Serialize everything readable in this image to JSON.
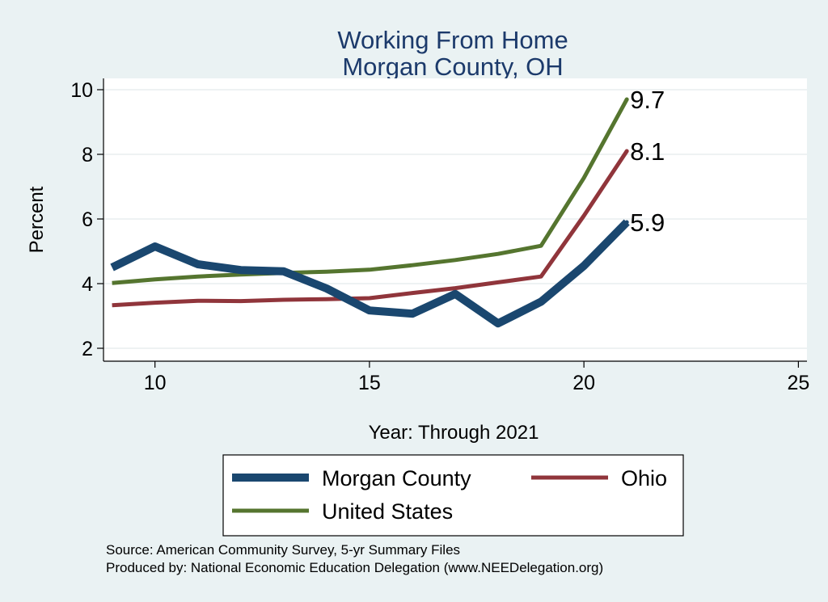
{
  "chart_data": {
    "type": "line",
    "title": [
      "Working From Home",
      "Morgan County, OH"
    ],
    "xlabel": "Year: Through 2021",
    "ylabel": "Percent",
    "xlim": [
      8.8,
      25.2
    ],
    "ylim": [
      1.6,
      10.35
    ],
    "xticks": [
      10,
      15,
      20,
      25
    ],
    "yticks": [
      2,
      4,
      6,
      8,
      10
    ],
    "grid": true,
    "legend_position": "bottom",
    "x": [
      9,
      10,
      11,
      12,
      13,
      14,
      15,
      16,
      17,
      18,
      19,
      20,
      21
    ],
    "series": [
      {
        "name": "Morgan County",
        "color": "#1a476f",
        "values": [
          4.5,
          5.15,
          4.6,
          4.42,
          4.38,
          3.85,
          3.17,
          3.07,
          3.68,
          2.77,
          3.44,
          4.55,
          5.9
        ],
        "end_label": "5.9"
      },
      {
        "name": "Ohio",
        "color": "#90353b",
        "values": [
          3.33,
          3.41,
          3.47,
          3.46,
          3.5,
          3.52,
          3.55,
          3.71,
          3.86,
          4.04,
          4.22,
          6.1,
          8.1
        ],
        "end_label": "8.1"
      },
      {
        "name": "United States",
        "color": "#55752f",
        "values": [
          4.02,
          4.13,
          4.22,
          4.28,
          4.33,
          4.37,
          4.43,
          4.57,
          4.73,
          4.92,
          5.17,
          7.27,
          9.7
        ],
        "end_label": "9.7"
      }
    ]
  },
  "notes": {
    "source": "Source: American Community Survey, 5-yr Summary Files",
    "produced_by": "Produced by: National Economic Education Delegation (www.NEEDelegation.org)"
  }
}
